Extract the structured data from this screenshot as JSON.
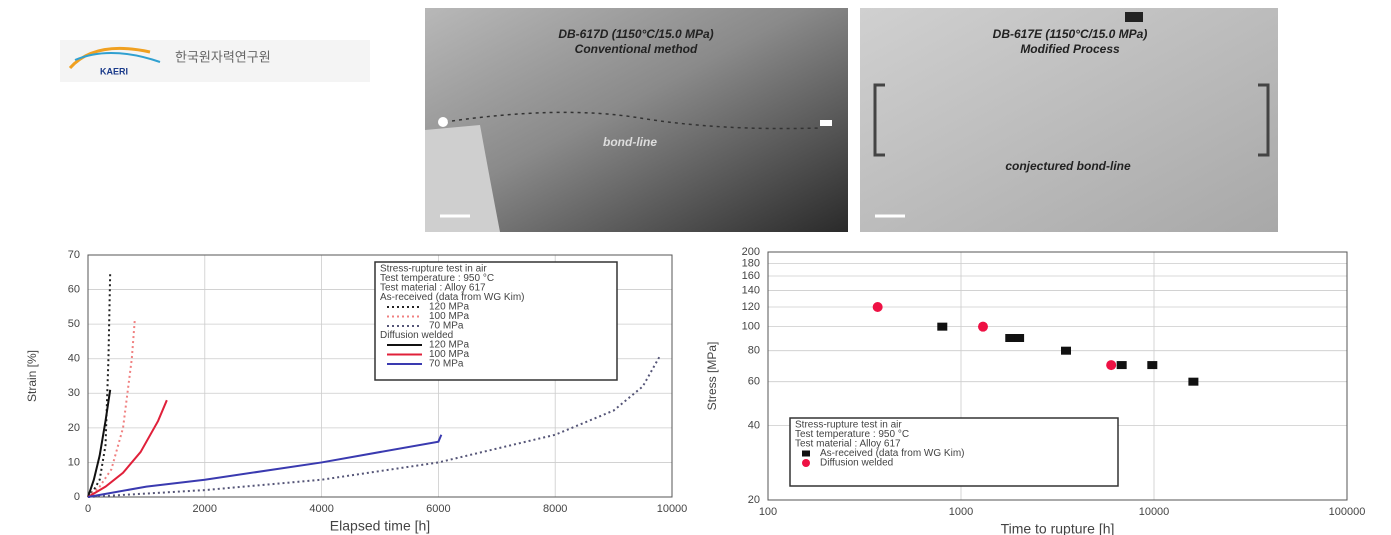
{
  "logo": {
    "abbr": "KAERI",
    "name": "한국원자력연구원"
  },
  "photos": [
    {
      "title": "DB-617D (1150°C/15.0 MPa)",
      "subtitle": "Conventional method",
      "label": "bond-line"
    },
    {
      "title": "DB-617E (1150°C/15.0 MPa)",
      "subtitle": "Modified Process",
      "label": "conjectured bond-line"
    }
  ],
  "chart_data": [
    {
      "type": "line",
      "xlabel": "Elapsed time [h]",
      "ylabel": "Strain [%]",
      "xlim": [
        0,
        10000
      ],
      "xticks": [
        0,
        2000,
        4000,
        6000,
        8000,
        10000
      ],
      "ylim": [
        0,
        70
      ],
      "yticks": [
        0,
        10,
        20,
        30,
        40,
        50,
        60,
        70
      ],
      "grid": true,
      "legend_lines": [
        "Stress-rupture test in air",
        "Test temperature : 950 °C",
        "Test material : Alloy 617"
      ],
      "legend_groups": [
        "As-received (data from WG Kim)",
        "Diffusion welded"
      ],
      "series": [
        {
          "name": "120 MPa",
          "group": 0,
          "style": "dotted",
          "color": "#222222",
          "x": [
            0,
            100,
            200,
            300,
            350,
            380
          ],
          "values": [
            0,
            2,
            5,
            15,
            40,
            65
          ]
        },
        {
          "name": "100 MPa",
          "group": 0,
          "style": "dotted",
          "color": "#f08080",
          "x": [
            0,
            200,
            400,
            600,
            750,
            800
          ],
          "values": [
            0,
            3,
            8,
            20,
            40,
            51
          ]
        },
        {
          "name": "70 MPa",
          "group": 0,
          "style": "dotted",
          "color": "#555577",
          "x": [
            0,
            2000,
            4000,
            6000,
            8000,
            9000,
            9500,
            9800
          ],
          "values": [
            0,
            2,
            5,
            10,
            18,
            25,
            32,
            41
          ]
        },
        {
          "name": "120 MPa",
          "group": 1,
          "style": "solid",
          "color": "#111111",
          "x": [
            0,
            100,
            200,
            300,
            380
          ],
          "values": [
            0,
            5,
            12,
            22,
            31
          ]
        },
        {
          "name": "100 MPa",
          "group": 1,
          "style": "solid",
          "color": "#e0203a",
          "x": [
            0,
            300,
            600,
            900,
            1200,
            1350
          ],
          "values": [
            0,
            3,
            7,
            13,
            22,
            28
          ]
        },
        {
          "name": "70 MPa",
          "group": 1,
          "style": "solid",
          "color": "#3a3ab0",
          "x": [
            0,
            1000,
            2000,
            4000,
            6000,
            6050
          ],
          "values": [
            0,
            3,
            5,
            10,
            16,
            18
          ]
        }
      ]
    },
    {
      "type": "scatter",
      "xlabel": "Time to rupture [h]",
      "ylabel": "Stress [MPa]",
      "xscale": "log",
      "yscale": "log",
      "xlim": [
        100,
        100000
      ],
      "xticks": [
        100,
        1000,
        10000,
        100000
      ],
      "ylim": [
        20,
        200
      ],
      "yticks": [
        20,
        40,
        60,
        80,
        100,
        120,
        140,
        160,
        180,
        200
      ],
      "grid": true,
      "legend_lines": [
        "Stress-rupture test in air",
        "Test temperature : 950 °C",
        "Test material : Alloy 617"
      ],
      "series": [
        {
          "name": "As-received (data from WG Kim)",
          "marker": "square",
          "color": "#111111",
          "x": [
            800,
            1800,
            2000,
            3500,
            6800,
            9800,
            16000
          ],
          "values": [
            100,
            90,
            90,
            80,
            70,
            70,
            60
          ]
        },
        {
          "name": "Diffusion welded",
          "marker": "circle",
          "color": "#ee1144",
          "x": [
            370,
            1300,
            6000
          ],
          "values": [
            120,
            100,
            70
          ]
        }
      ]
    }
  ]
}
